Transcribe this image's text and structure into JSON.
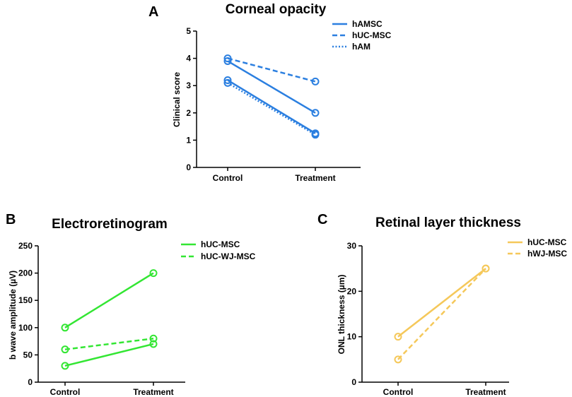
{
  "chart_data": [
    {
      "type": "line",
      "panel_letter": "A",
      "title": "Corneal opacity",
      "xlabel": "",
      "ylabel": "Clinical score",
      "categories": [
        "Control",
        "Treatment"
      ],
      "ylim": [
        0,
        5
      ],
      "yticks": [
        0,
        1,
        2,
        3,
        4,
        5
      ],
      "yticks_text": [
        "0",
        "1",
        "2",
        "3",
        "4",
        "5"
      ],
      "color": "#2b7fe0",
      "legend_position": "top-right",
      "legend": [
        {
          "name": "hAMSC",
          "style": "solid"
        },
        {
          "name": "hUC-MSC",
          "style": "dashed"
        },
        {
          "name": "hAM",
          "style": "dotted"
        }
      ],
      "series": [
        {
          "name": "hAMSC",
          "style": "solid",
          "values": [
            3.9,
            2.0
          ]
        },
        {
          "name": "hUC-MSC",
          "style": "dashed",
          "values": [
            4.0,
            3.15
          ]
        },
        {
          "name": "hAM",
          "style": "dotted",
          "values": [
            3.1,
            1.2
          ]
        },
        {
          "name": "hAMSC",
          "style": "solid",
          "values": [
            3.2,
            1.25
          ]
        }
      ]
    },
    {
      "type": "line",
      "panel_letter": "B",
      "title": "Electroretinogram",
      "xlabel": "",
      "ylabel": "b wave amplitude (µV)",
      "categories": [
        "Control",
        "Treatment"
      ],
      "ylim": [
        0,
        250
      ],
      "yticks": [
        0,
        50,
        100,
        150,
        200,
        250
      ],
      "yticks_text": [
        "0",
        "50",
        "100",
        "150",
        "200",
        "250"
      ],
      "color": "#33e633",
      "legend_position": "top-right",
      "legend": [
        {
          "name": "hUC-MSC",
          "style": "solid"
        },
        {
          "name": "hUC-WJ-MSC",
          "style": "dashed"
        }
      ],
      "series": [
        {
          "name": "hUC-MSC",
          "style": "solid",
          "values": [
            100,
            200
          ]
        },
        {
          "name": "hUC-MSC",
          "style": "solid",
          "values": [
            30,
            70
          ]
        },
        {
          "name": "hUC-WJ-MSC",
          "style": "dashed",
          "values": [
            60,
            80
          ]
        }
      ]
    },
    {
      "type": "line",
      "panel_letter": "C",
      "title": "Retinal layer thickness",
      "xlabel": "",
      "ylabel": "ONL thickness (µm)",
      "categories": [
        "Control",
        "Treatment"
      ],
      "ylim": [
        0,
        30
      ],
      "yticks": [
        0,
        10,
        20,
        30
      ],
      "yticks_text": [
        "0",
        "10",
        "20",
        "30"
      ],
      "color": "#f5c85a",
      "legend_position": "top-right",
      "legend": [
        {
          "name": "hUC-MSC",
          "style": "solid"
        },
        {
          "name": "hWJ-MSC",
          "style": "dashed"
        }
      ],
      "series": [
        {
          "name": "hUC-MSC",
          "style": "solid",
          "values": [
            10,
            25
          ]
        },
        {
          "name": "hWJ-MSC",
          "style": "dashed",
          "values": [
            5,
            25
          ]
        }
      ]
    }
  ]
}
